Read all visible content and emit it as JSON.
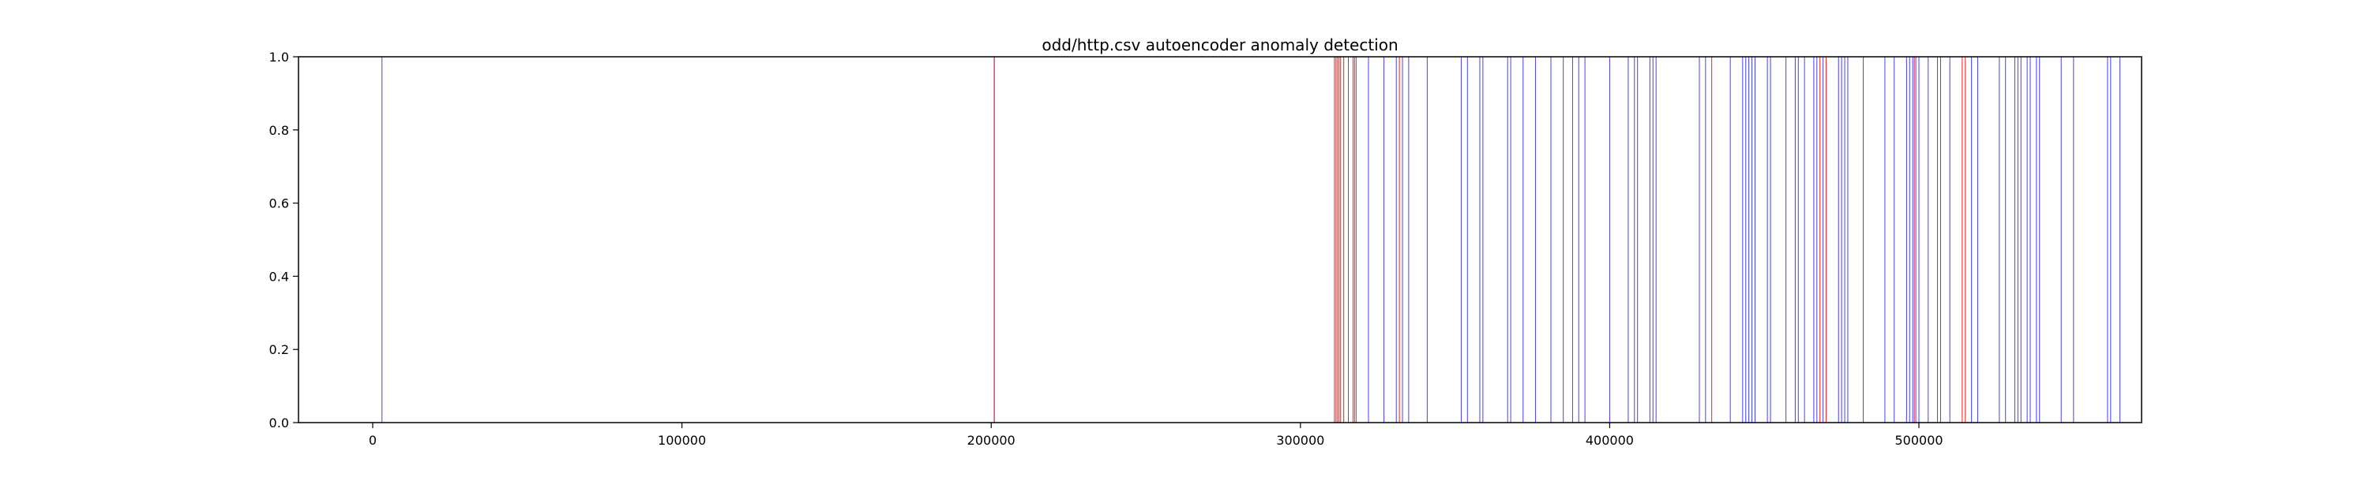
{
  "chart_data": {
    "type": "bar",
    "title": "odd/http.csv autoencoder anomaly detection",
    "xlabel": "",
    "ylabel": "",
    "xlim": [
      -24000,
      572000
    ],
    "ylim": [
      0,
      1.0
    ],
    "grid": false,
    "x_ticks": [
      0,
      100000,
      200000,
      300000,
      400000,
      500000
    ],
    "x_tick_labels": [
      "0",
      "100000",
      "200000",
      "300000",
      "400000",
      "500000"
    ],
    "y_ticks": [
      0.0,
      0.2,
      0.4,
      0.6,
      0.8,
      1.0
    ],
    "y_tick_labels": [
      "0.0",
      "0.2",
      "0.4",
      "0.6",
      "0.8",
      "1.0"
    ],
    "colors": {
      "blue": "#0000ff",
      "red": "#ff0000",
      "axes": "#000000",
      "background": "#ffffff"
    },
    "series": [
      {
        "color": "#0000ff",
        "x": [
          3000,
          201000,
          322000,
          327000,
          331000,
          333000,
          335000,
          341000,
          352000,
          354000,
          358000,
          359000,
          367000,
          368000,
          372000,
          376000,
          381000,
          385000,
          388000,
          390000,
          392000,
          400000,
          406000,
          408000,
          409000,
          413000,
          414000,
          415000,
          429000,
          431000,
          439000,
          443000,
          444000,
          445000,
          446000,
          447000,
          451000,
          452000,
          457000,
          460000,
          461000,
          463000,
          466000,
          467000,
          469000,
          474000,
          475000,
          476000,
          477000,
          482000,
          489000,
          492000,
          496000,
          497000,
          498000,
          499000,
          500000,
          503000,
          506000,
          507000,
          510000,
          517000,
          519000,
          526000,
          528000,
          531000,
          532000,
          533000,
          535000,
          536000,
          538000,
          539000,
          546000,
          550000,
          561000,
          562000,
          565000
        ],
        "heights": [
          1,
          1,
          1,
          1,
          1,
          1,
          1,
          1,
          1,
          1,
          1,
          1,
          1,
          1,
          1,
          1,
          1,
          1,
          1,
          1,
          1,
          1,
          1,
          1,
          1,
          1,
          1,
          1,
          1,
          1,
          1,
          1,
          1,
          1,
          1,
          1,
          1,
          1,
          1,
          1,
          1,
          1,
          1,
          1,
          1,
          1,
          1,
          1,
          1,
          1,
          1,
          1,
          1,
          1,
          1,
          1,
          1,
          1,
          1,
          1,
          1,
          1,
          1,
          1,
          1,
          1,
          1,
          1,
          1,
          1,
          1,
          1,
          1,
          1,
          1,
          1,
          1
        ]
      },
      {
        "color": "#ff0000",
        "x": [
          201000,
          311000,
          311500,
          312000,
          312500,
          313000,
          314000,
          315500,
          317000,
          317500,
          318000,
          332000,
          433000,
          468000,
          470000,
          498500,
          514000,
          515000
        ],
        "heights": [
          1,
          1,
          1,
          1,
          1,
          1,
          1,
          1,
          1,
          1,
          1,
          1,
          1,
          1,
          1,
          1,
          1,
          1
        ]
      }
    ]
  }
}
